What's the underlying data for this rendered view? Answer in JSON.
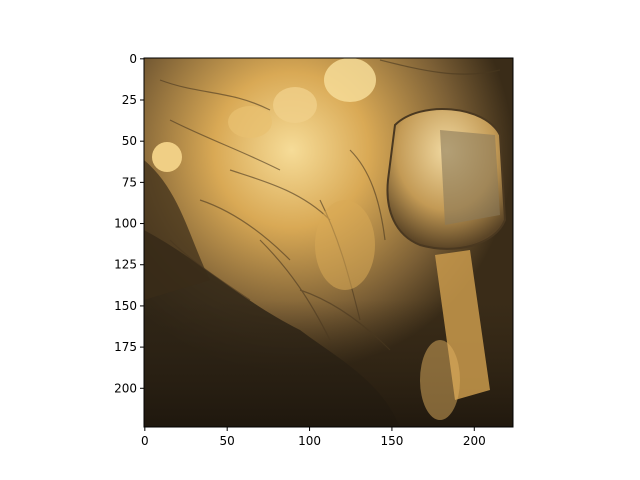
{
  "figure": {
    "background": "#ffffff"
  },
  "image": {
    "description_colors": {
      "dark": "#2b2114",
      "mid": "#7a5e35",
      "light": "#e8c070",
      "highlight": "#f6dc98"
    }
  },
  "chart_data": {
    "type": "image",
    "title": "",
    "xlabel": "",
    "ylabel": "",
    "xlim": [
      -0.5,
      223.5
    ],
    "ylim": [
      223.5,
      -0.5
    ],
    "x_ticks": [
      0,
      50,
      100,
      150,
      200
    ],
    "y_ticks": [
      0,
      25,
      50,
      75,
      100,
      125,
      150,
      175,
      200
    ],
    "x_tick_labels": [
      "0",
      "50",
      "100",
      "150",
      "200"
    ],
    "y_tick_labels": [
      "0",
      "25",
      "50",
      "75",
      "100",
      "125",
      "150",
      "175",
      "200"
    ],
    "grid": false,
    "legend": "none"
  }
}
